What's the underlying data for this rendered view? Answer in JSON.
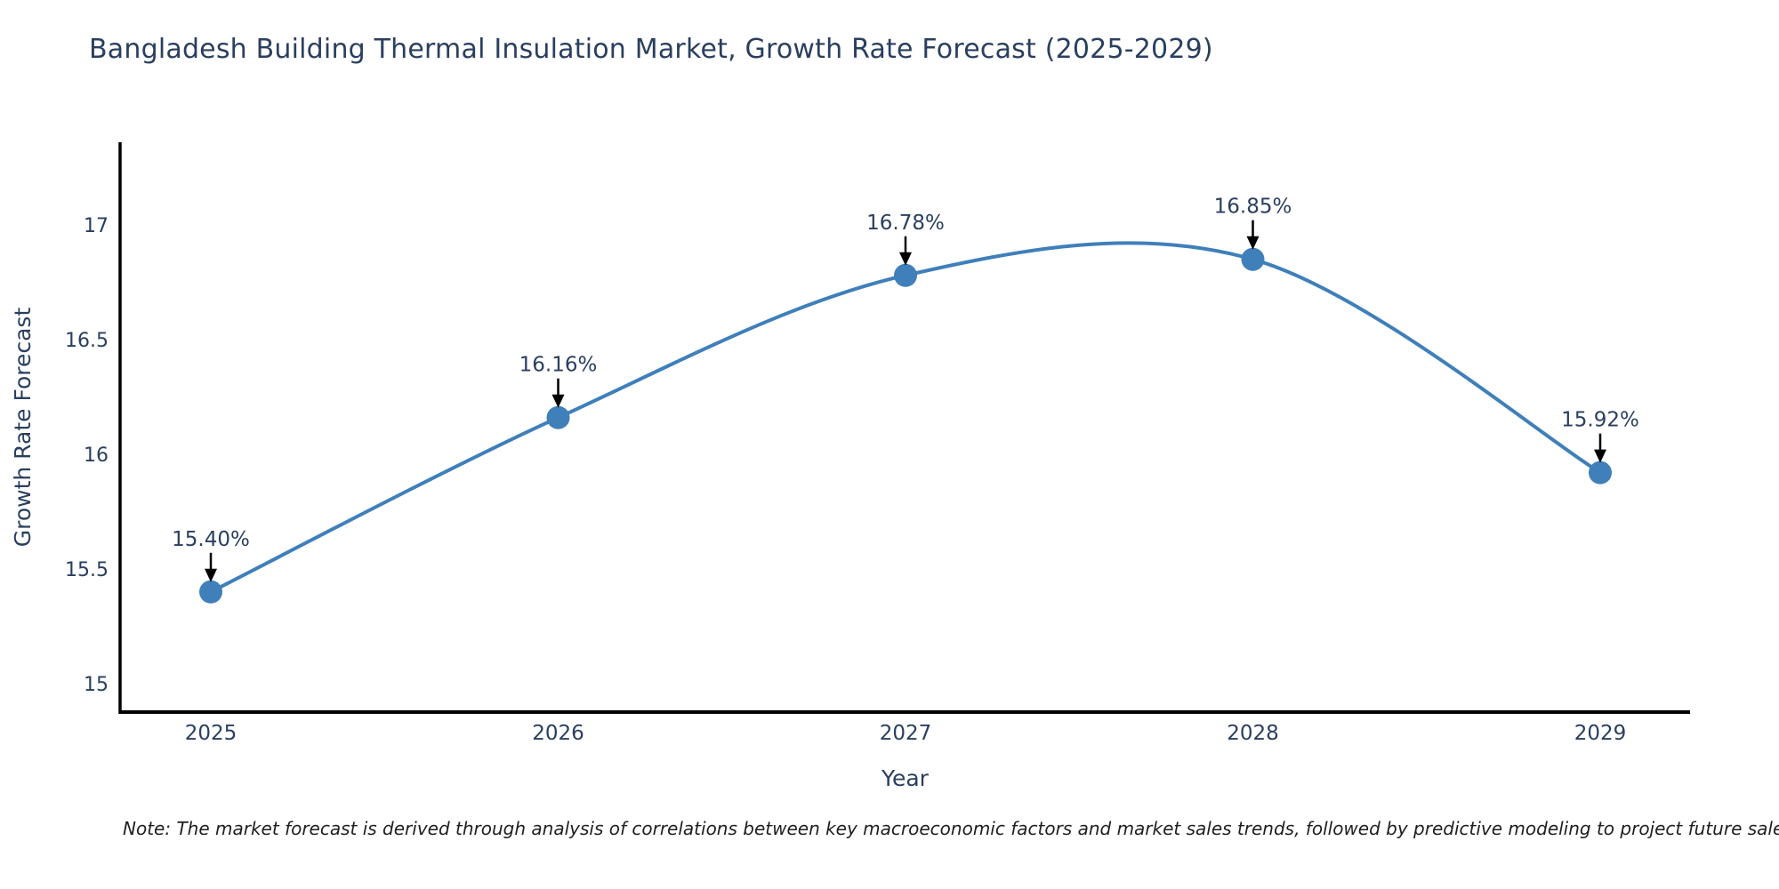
{
  "chart_data": {
    "type": "line",
    "title": "Bangladesh Building Thermal Insulation Market, Growth Rate Forecast (2025-2029)",
    "xlabel": "Year",
    "ylabel": "Growth Rate Forecast",
    "categories": [
      "2025",
      "2026",
      "2027",
      "2028",
      "2029"
    ],
    "values": [
      15.4,
      16.16,
      16.78,
      16.85,
      15.92
    ],
    "point_labels": [
      "15.40%",
      "16.16%",
      "16.78%",
      "16.85%",
      "15.92%"
    ],
    "yticks": [
      15,
      15.5,
      16,
      16.5,
      17
    ],
    "ytick_labels": [
      "15",
      "15.5",
      "16",
      "16.5",
      "17"
    ],
    "ylim": [
      14.87,
      17.36
    ],
    "line_shape": "spline",
    "grid": false,
    "legend": "none",
    "colors": {
      "line": "#3f7fba",
      "marker": "#3f7fba",
      "axis": "#000000",
      "text": "#2a3f5f",
      "annotation_arrow": "#000000",
      "note_text": "#1f1f1f",
      "background": "#ffffff"
    }
  },
  "note": "Note: The market forecast is derived through analysis of correlations between key macroeconomic factors and market sales trends, followed by predictive modeling to project future sales"
}
